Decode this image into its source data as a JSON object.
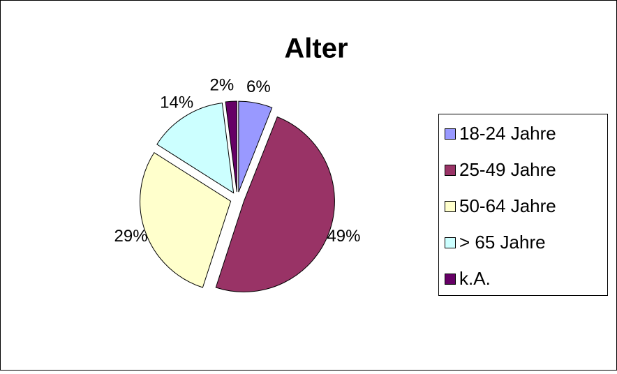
{
  "chart_data": {
    "type": "pie",
    "title": "Alter",
    "categories": [
      "18-24 Jahre",
      "25-49 Jahre",
      "50-64 Jahre",
      "> 65 Jahre",
      "k.A."
    ],
    "values": [
      6,
      49,
      29,
      14,
      2
    ],
    "value_labels": [
      "6%",
      "49%",
      "29%",
      "14%",
      "2%"
    ],
    "colors": [
      "#9999ff",
      "#993366",
      "#ffffcc",
      "#ccffff",
      "#660066"
    ],
    "legend": "right"
  }
}
